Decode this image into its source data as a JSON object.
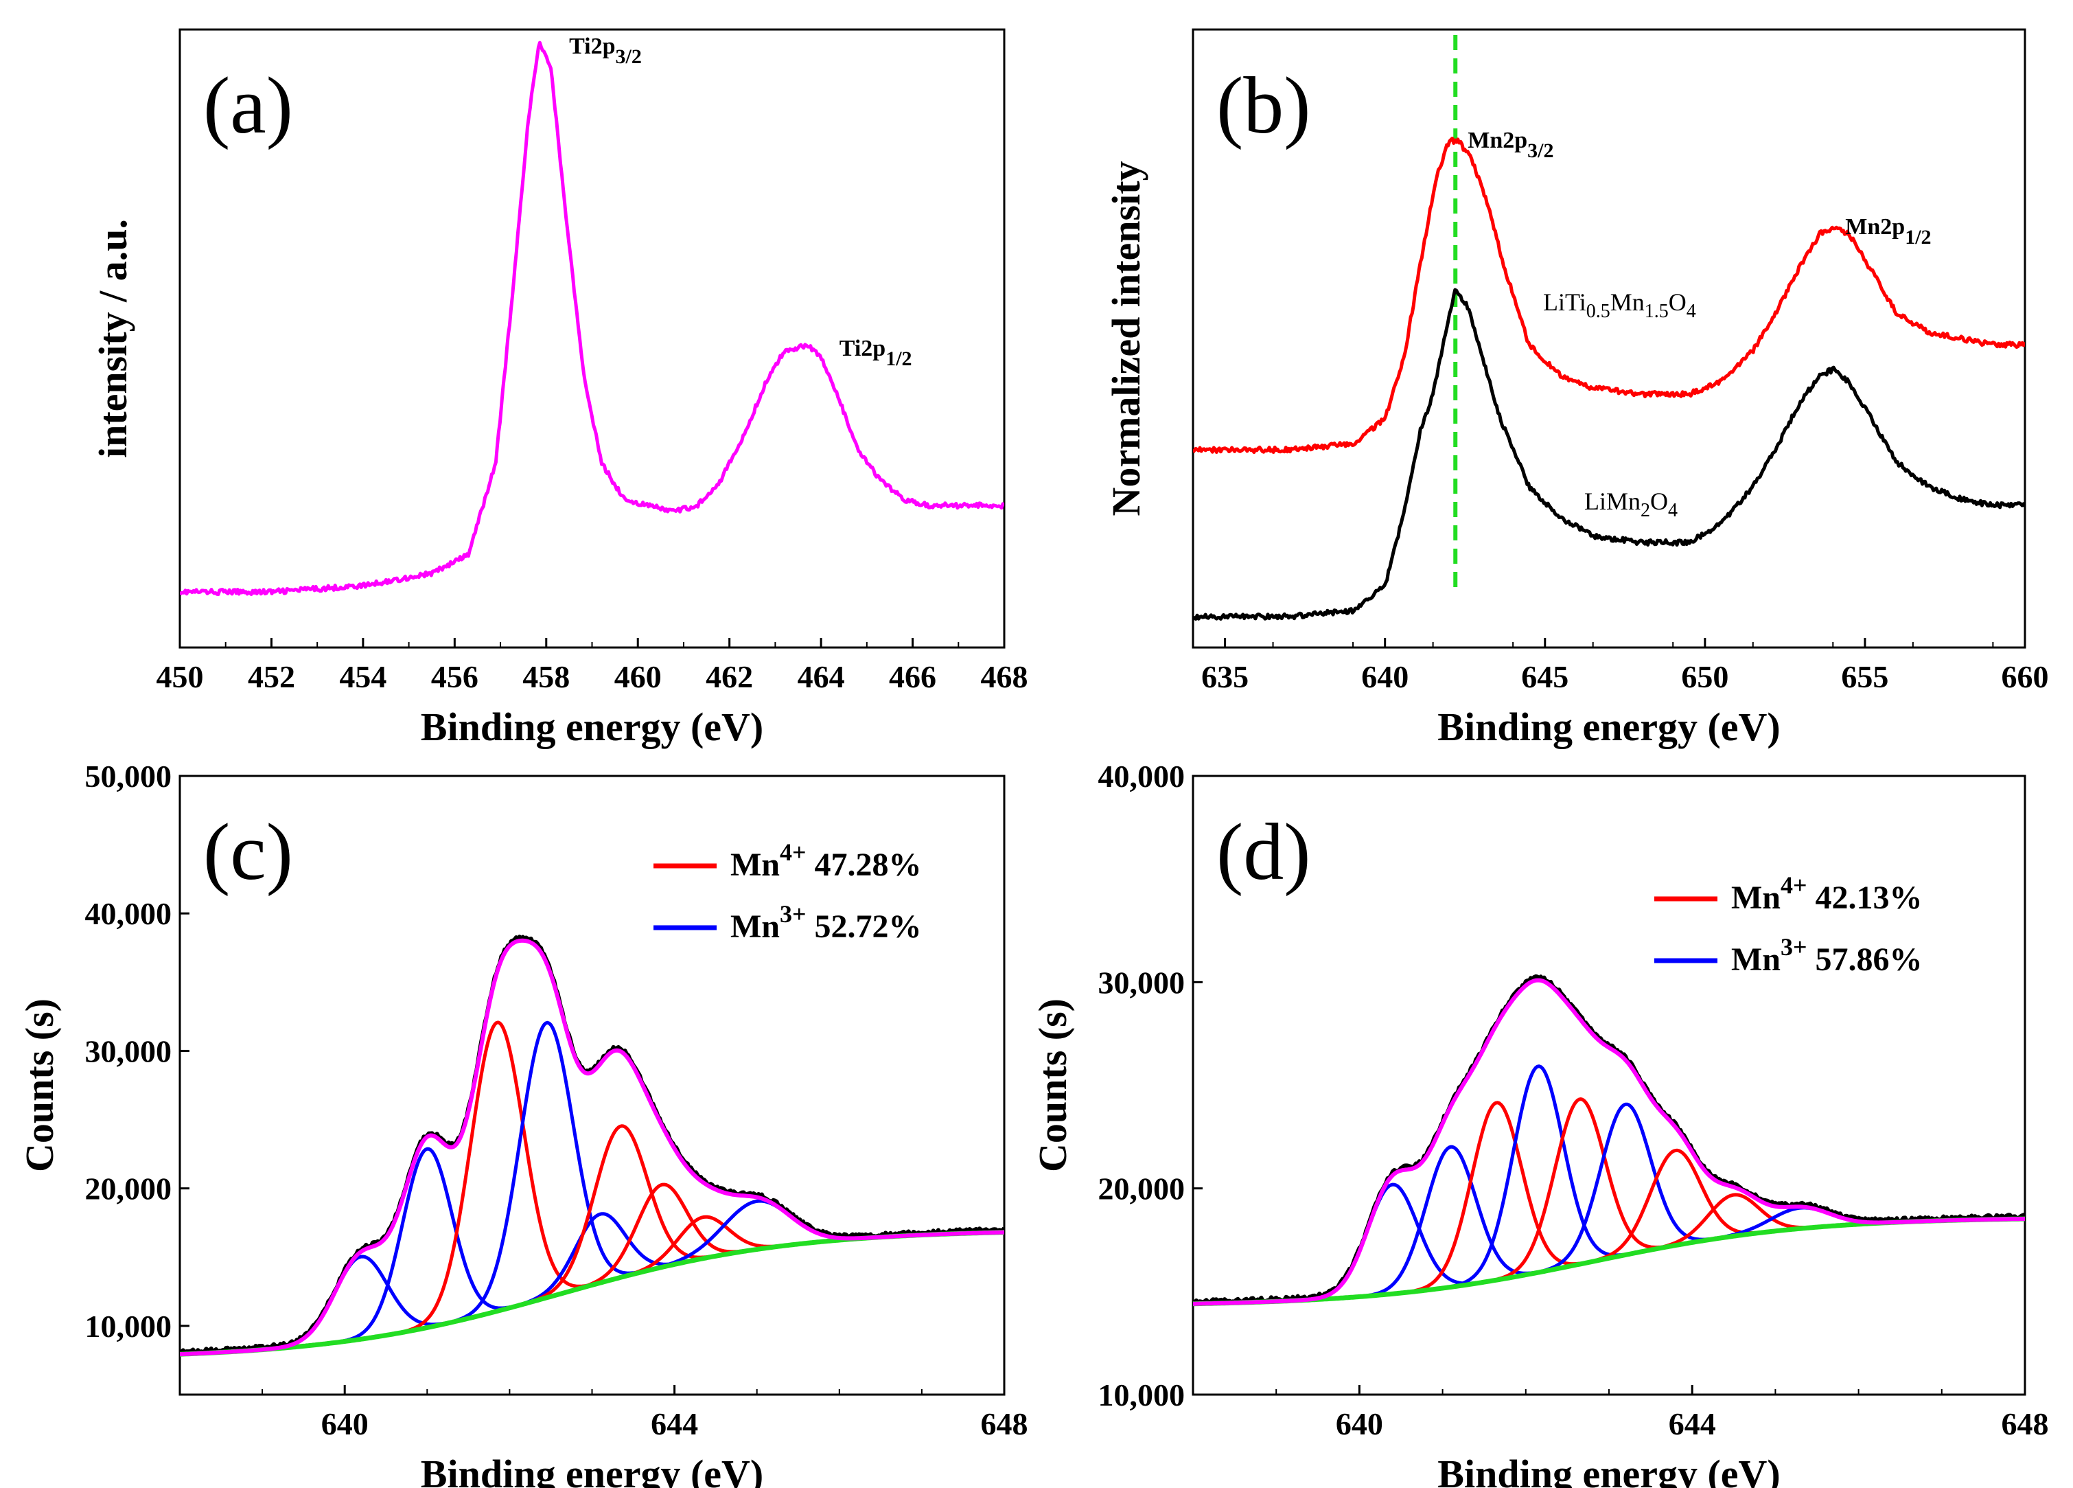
{
  "chart_data": [
    {
      "panel": "(a)",
      "type": "line",
      "xlabel": "Binding energy (eV)",
      "ylabel": "intensity / a.u.",
      "xlim": [
        450,
        468
      ],
      "xticks": [
        450,
        452,
        454,
        456,
        458,
        460,
        462,
        464,
        466,
        468
      ],
      "yticks": [],
      "annotations": [
        {
          "main": "Ti2p",
          "sub": "3/2",
          "x": 457.9
        },
        {
          "main": "Ti2p",
          "sub": "1/2",
          "x": 463.8
        }
      ],
      "series": [
        {
          "name": "Ti 2p",
          "color": "#ff00ff",
          "x": [
            450,
            452,
            454,
            455.5,
            456.3,
            456.9,
            457.3,
            457.6,
            457.85,
            458.1,
            458.4,
            458.8,
            459.2,
            459.7,
            460.2,
            460.8,
            461.3,
            461.8,
            462.3,
            462.8,
            463.2,
            463.7,
            464.0,
            464.4,
            464.8,
            465.3,
            465.8,
            466.3,
            467,
            468
          ],
          "y": [
            0.09,
            0.09,
            0.1,
            0.12,
            0.15,
            0.3,
            0.6,
            0.85,
            0.98,
            0.94,
            0.72,
            0.45,
            0.3,
            0.24,
            0.23,
            0.22,
            0.23,
            0.27,
            0.34,
            0.43,
            0.48,
            0.49,
            0.47,
            0.4,
            0.32,
            0.27,
            0.24,
            0.23,
            0.23,
            0.23
          ]
        }
      ]
    },
    {
      "panel": "(b)",
      "type": "line",
      "xlabel": "Binding energy (eV)",
      "ylabel": "Normalized intensity",
      "xlim": [
        634,
        660
      ],
      "xticks": [
        635,
        640,
        645,
        650,
        655,
        660
      ],
      "yticks": [],
      "reference_line_x": 642.2,
      "reference_line_color": "#22dd22",
      "annotations": [
        {
          "main": "Mn2p",
          "sub": "3/2",
          "x": 642.2
        },
        {
          "main": "Mn2p",
          "sub": "1/2",
          "x": 654.0
        }
      ],
      "series": [
        {
          "name": "LiTi0.5Mn1.5O4",
          "label_parts": [
            "LiTi",
            "0.5",
            "Mn",
            "1.5",
            "O",
            "4"
          ],
          "color": "#ff0000",
          "x": [
            634,
            637,
            639,
            640,
            640.6,
            641.1,
            641.6,
            642.0,
            642.3,
            642.7,
            643.2,
            643.7,
            644.5,
            645.5,
            646.5,
            648,
            649.5,
            650.5,
            651.5,
            652.3,
            653,
            653.6,
            654.0,
            654.5,
            655.2,
            656,
            657,
            658,
            659,
            660
          ],
          "y": [
            0.32,
            0.32,
            0.33,
            0.37,
            0.47,
            0.62,
            0.76,
            0.82,
            0.82,
            0.79,
            0.72,
            0.62,
            0.49,
            0.44,
            0.42,
            0.41,
            0.41,
            0.43,
            0.48,
            0.55,
            0.62,
            0.67,
            0.68,
            0.67,
            0.61,
            0.54,
            0.51,
            0.5,
            0.49,
            0.49
          ]
        },
        {
          "name": "LiMn2O4",
          "label_parts": [
            "LiMn",
            "2",
            "O",
            "4"
          ],
          "color": "#000000",
          "x": [
            634,
            637,
            639,
            640,
            640.6,
            641.1,
            641.5,
            641.9,
            642.2,
            642.6,
            643.1,
            643.6,
            644.5,
            645.5,
            646.5,
            648,
            649.5,
            650.5,
            651.5,
            652.3,
            653,
            653.6,
            654.0,
            654.5,
            655.2,
            656,
            657,
            658,
            659,
            660
          ],
          "y": [
            0.05,
            0.05,
            0.06,
            0.1,
            0.22,
            0.35,
            0.41,
            0.51,
            0.58,
            0.55,
            0.46,
            0.37,
            0.26,
            0.21,
            0.18,
            0.17,
            0.17,
            0.2,
            0.26,
            0.33,
            0.4,
            0.44,
            0.45,
            0.43,
            0.37,
            0.3,
            0.26,
            0.24,
            0.23,
            0.23
          ]
        }
      ]
    },
    {
      "panel": "(c)",
      "type": "line",
      "xlabel": "Binding energy (eV)",
      "ylabel": "Counts (s)",
      "xlim": [
        638,
        648
      ],
      "ylim": [
        5000,
        50000
      ],
      "xticks": [
        640,
        644,
        648
      ],
      "yticks": [
        10000,
        20000,
        30000,
        40000,
        50000
      ],
      "ytick_labels": [
        "10,000",
        "20,000",
        "30,000",
        "40,000",
        "50,000"
      ],
      "legend": [
        {
          "ion": "Mn",
          "charge": "4+",
          "percent": "47.28%",
          "color": "#ff0000"
        },
        {
          "ion": "Mn",
          "charge": "3+",
          "percent": "52.72%",
          "color": "#0000ff"
        }
      ],
      "background": {
        "left": 7600,
        "right": 17000,
        "center": 642.6,
        "width": 1.4,
        "color": "#22dd22"
      },
      "components": [
        {
          "center": 640.2,
          "amp": 6000,
          "sigma": 0.32,
          "color": "#0000ff"
        },
        {
          "center": 641.0,
          "amp": 13000,
          "sigma": 0.3,
          "color": "#0000ff"
        },
        {
          "center": 641.85,
          "amp": 21000,
          "sigma": 0.32,
          "color": "#ff0000"
        },
        {
          "center": 642.45,
          "amp": 20000,
          "sigma": 0.32,
          "color": "#0000ff"
        },
        {
          "center": 643.1,
          "amp": 5000,
          "sigma": 0.3,
          "color": "#0000ff"
        },
        {
          "center": 643.35,
          "amp": 11000,
          "sigma": 0.32,
          "color": "#ff0000"
        },
        {
          "center": 643.85,
          "amp": 6000,
          "sigma": 0.3,
          "color": "#ff0000"
        },
        {
          "center": 644.35,
          "amp": 3000,
          "sigma": 0.3,
          "color": "#ff0000"
        },
        {
          "center": 645.0,
          "amp": 3500,
          "sigma": 0.4,
          "color": "#0000ff"
        }
      ],
      "envelope_color": "#ff00ff",
      "raw_color": "#000000"
    },
    {
      "panel": "(d)",
      "type": "line",
      "xlabel": "Binding energy (eV)",
      "ylabel": "Counts (s)",
      "xlim": [
        638,
        648
      ],
      "ylim": [
        10000,
        40000
      ],
      "xticks": [
        640,
        644,
        648
      ],
      "yticks": [
        10000,
        20000,
        30000,
        40000
      ],
      "ytick_labels": [
        "10,000",
        "20,000",
        "30,000",
        "40,000"
      ],
      "legend": [
        {
          "ion": "Mn",
          "charge": "4+",
          "percent": "42.13%",
          "color": "#ff0000"
        },
        {
          "ion": "Mn",
          "charge": "3+",
          "percent": "57.86%",
          "color": "#0000ff"
        }
      ],
      "background": {
        "left": 14300,
        "right": 18600,
        "center": 642.8,
        "width": 1.3,
        "color": "#22dd22"
      },
      "components": [
        {
          "center": 640.4,
          "amp": 5300,
          "sigma": 0.3,
          "color": "#0000ff"
        },
        {
          "center": 641.1,
          "amp": 6800,
          "sigma": 0.3,
          "color": "#0000ff"
        },
        {
          "center": 641.65,
          "amp": 8600,
          "sigma": 0.3,
          "color": "#ff0000"
        },
        {
          "center": 642.15,
          "amp": 10000,
          "sigma": 0.3,
          "color": "#0000ff"
        },
        {
          "center": 642.65,
          "amp": 8000,
          "sigma": 0.3,
          "color": "#ff0000"
        },
        {
          "center": 643.2,
          "amp": 7300,
          "sigma": 0.3,
          "color": "#0000ff"
        },
        {
          "center": 643.8,
          "amp": 4600,
          "sigma": 0.3,
          "color": "#ff0000"
        },
        {
          "center": 644.5,
          "amp": 2000,
          "sigma": 0.3,
          "color": "#ff0000"
        },
        {
          "center": 645.3,
          "amp": 1000,
          "sigma": 0.35,
          "color": "#0000ff"
        }
      ],
      "envelope_color": "#ff00ff",
      "raw_color": "#000000"
    }
  ]
}
